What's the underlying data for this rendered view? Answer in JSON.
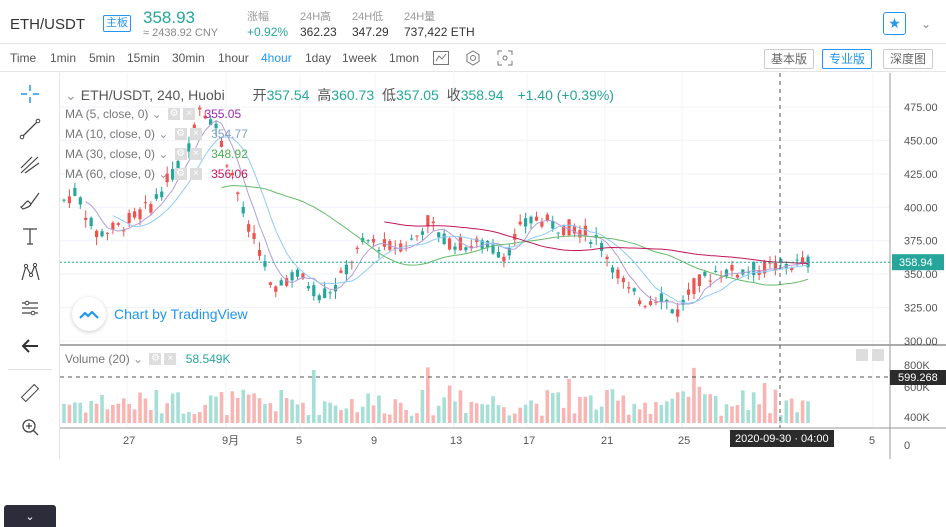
{
  "header": {
    "pair": "ETH/USDT",
    "badge": "主板",
    "price": "358.93",
    "price_cny": "≈ 2438.92 CNY",
    "stats": [
      {
        "label": "涨幅",
        "value": "+0.92%",
        "color": "#26a69a"
      },
      {
        "label": "24H高",
        "value": "362.23",
        "color": "#333333"
      },
      {
        "label": "24H低",
        "value": "347.29",
        "color": "#333333"
      },
      {
        "label": "24H量",
        "value": "737,422 ETH",
        "color": "#333333"
      }
    ],
    "fav_icon": "star-icon",
    "more_icon": "chevron-down-icon"
  },
  "timeframes": [
    "Time",
    "1min",
    "5min",
    "15min",
    "30min",
    "1hour",
    "4hour",
    "1day",
    "1week",
    "1mon"
  ],
  "active_timeframe": "4hour",
  "views": [
    "基本版",
    "专业版",
    "深度图"
  ],
  "active_view": "专业版",
  "legend": {
    "title": "ETH/USDT, 240, Huobi",
    "open_label": "开",
    "open": "357.54",
    "high_label": "高",
    "high": "360.73",
    "low_label": "低",
    "low": "357.05",
    "close_label": "收",
    "close": "358.94",
    "change": "+1.40 (+0.39%)",
    "ma": [
      {
        "label": "MA (5, close, 0)",
        "value": "355.05",
        "color": "#9c27b0"
      },
      {
        "label": "MA (10, close, 0)",
        "value": "354.77",
        "color": "#7e9fd0"
      },
      {
        "label": "MA (30, close, 0)",
        "value": "348.92",
        "color": "#4caf50"
      },
      {
        "label": "MA (60, close, 0)",
        "value": "356.06",
        "color": "#c2185b"
      }
    ],
    "volume_label": "Volume (20)",
    "volume_value": "58.549K"
  },
  "watermark": "Chart by TradingView",
  "price_axis": [
    "475.00",
    "450.00",
    "425.00",
    "400.00",
    "375.00",
    "350.00",
    "325.00",
    "300.00"
  ],
  "last_price_label": "358.94",
  "volume_axis": [
    "800K",
    "600K",
    "400K",
    "0"
  ],
  "last_volume_label": "599.268",
  "time_axis": [
    "27",
    "9月",
    "5",
    "9",
    "13",
    "17",
    "21",
    "25",
    "5"
  ],
  "crosshair_time": "2020-09-30 · 04:00",
  "colors": {
    "up": "#26a69a",
    "down": "#ef5350",
    "vol_up": "#a6dfd5",
    "vol_down": "#f8b5b3",
    "accent": "#2196f3"
  }
}
